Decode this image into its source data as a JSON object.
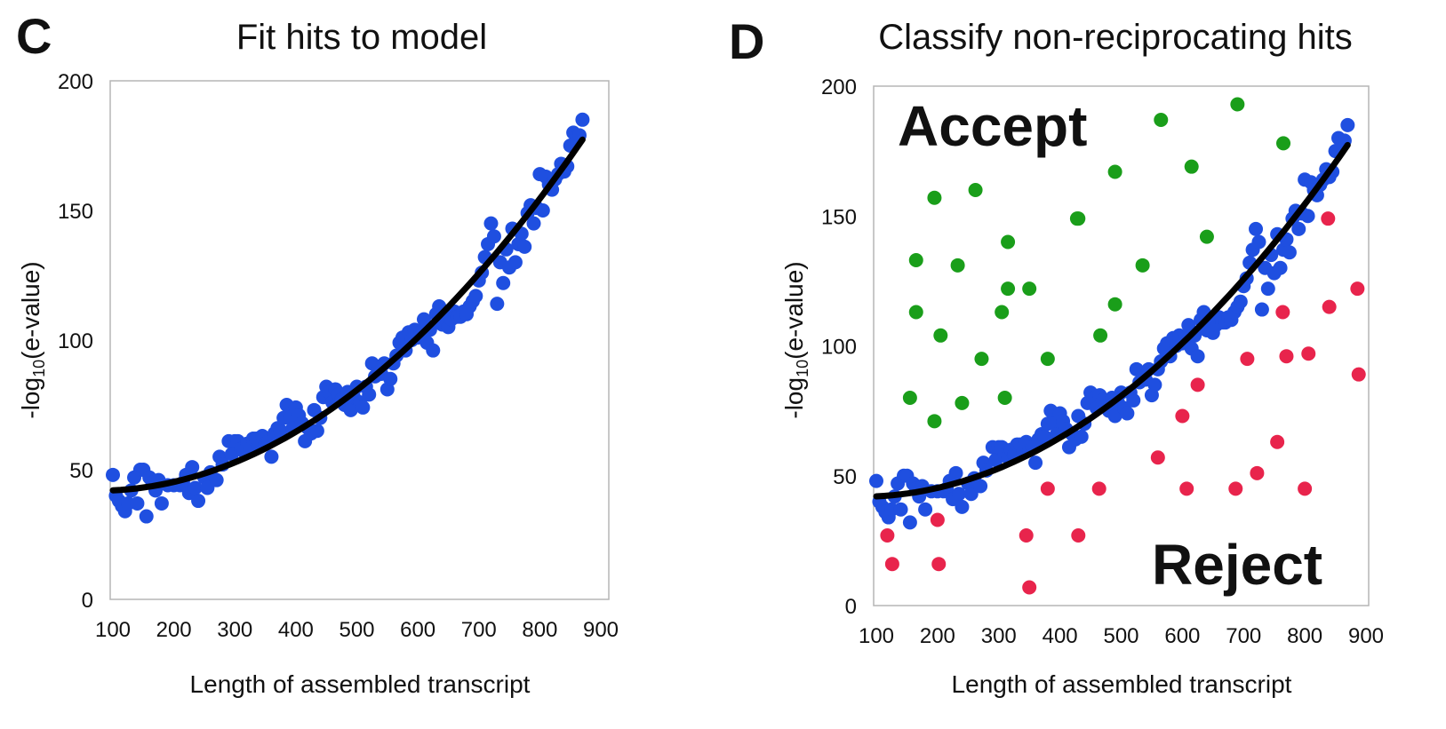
{
  "colors": {
    "blue": "#1f4fe0",
    "green": "#1a9e1a",
    "red": "#e8244c",
    "fit": "#000000",
    "frame": "#b5b5b5"
  },
  "chart_data": [
    {
      "type": "scatter",
      "panel_letter": "C",
      "title": "Fit hits to model",
      "xlabel": "Length of assembled transcript",
      "ylabel": "-log10(e-value)",
      "xlim": [
        100,
        900
      ],
      "ylim": [
        0,
        200
      ],
      "xticks": [
        "100",
        "200",
        "300",
        "400",
        "500",
        "600",
        "700",
        "800",
        "900"
      ],
      "yticks": [
        "0",
        "50",
        "100",
        "150",
        "200"
      ],
      "grid": false,
      "fit_curve": {
        "label": "",
        "color": "#000000",
        "x": [
          100,
          200,
          300,
          400,
          500,
          600,
          700,
          800,
          870
        ],
        "y": [
          42,
          45,
          53,
          65,
          81,
          101,
          125,
          154,
          178
        ]
      },
      "series": [
        {
          "color": "#1f4fe0",
          "x": [
            100,
            105,
            110,
            115,
            120,
            125,
            130,
            135,
            140,
            145,
            150,
            155,
            160,
            165,
            170,
            175,
            180,
            190,
            200,
            210,
            215,
            220,
            225,
            230,
            235,
            240,
            250,
            255,
            260,
            270,
            275,
            280,
            290,
            295,
            300,
            305,
            310,
            315,
            320,
            325,
            330,
            335,
            340,
            345,
            350,
            355,
            360,
            365,
            370,
            375,
            380,
            385,
            390,
            395,
            400,
            405,
            410,
            415,
            420,
            425,
            430,
            435,
            440,
            445,
            450,
            455,
            460,
            465,
            470,
            475,
            480,
            485,
            490,
            495,
            500,
            505,
            510,
            515,
            520,
            525,
            530,
            535,
            540,
            545,
            550,
            555,
            560,
            565,
            570,
            575,
            580,
            585,
            590,
            595,
            600,
            605,
            610,
            615,
            620,
            625,
            630,
            635,
            640,
            645,
            650,
            655,
            660,
            665,
            670,
            675,
            680,
            685,
            690,
            695,
            700,
            705,
            710,
            715,
            720,
            725,
            730,
            735,
            740,
            745,
            750,
            755,
            760,
            765,
            770,
            775,
            780,
            785,
            790,
            795,
            800,
            805,
            810,
            815,
            820,
            825,
            830,
            835,
            840,
            845,
            850,
            855,
            860,
            865,
            870
          ],
          "y": [
            48,
            40,
            38,
            36,
            34,
            37,
            42,
            47,
            37,
            50,
            50,
            32,
            47,
            45,
            42,
            46,
            37,
            44,
            44,
            44,
            45,
            48,
            41,
            51,
            43,
            38,
            47,
            43,
            49,
            46,
            55,
            52,
            61,
            56,
            61,
            61,
            58,
            57,
            60,
            58,
            62,
            62,
            59,
            63,
            60,
            61,
            55,
            64,
            66,
            65,
            70,
            75,
            70,
            66,
            74,
            71,
            68,
            61,
            66,
            64,
            73,
            65,
            70,
            78,
            82,
            80,
            76,
            81,
            79,
            77,
            75,
            80,
            73,
            78,
            82,
            76,
            74,
            82,
            79,
            91,
            86,
            89,
            87,
            91,
            81,
            85,
            91,
            94,
            99,
            101,
            96,
            103,
            100,
            104,
            101,
            103,
            108,
            99,
            104,
            96,
            110,
            113,
            106,
            111,
            105,
            108,
            111,
            109,
            109,
            111,
            110,
            113,
            115,
            117,
            123,
            126,
            132,
            137,
            145,
            140,
            114,
            130,
            122,
            135,
            128,
            143,
            130,
            137,
            141,
            136,
            149,
            152,
            145,
            151,
            164,
            150,
            163,
            160,
            158,
            162,
            164,
            168,
            165,
            167,
            175,
            180,
            178,
            179,
            185
          ]
        }
      ]
    },
    {
      "type": "scatter",
      "panel_letter": "D",
      "title": "Classify non-reciprocating hits",
      "xlabel": "Length of assembled transcript",
      "ylabel": "-log10(e-value)",
      "xlim": [
        100,
        900
      ],
      "ylim": [
        0,
        200
      ],
      "xticks": [
        "100",
        "200",
        "300",
        "400",
        "500",
        "600",
        "700",
        "800",
        "900"
      ],
      "yticks": [
        "0",
        "50",
        "100",
        "150",
        "200"
      ],
      "grid": false,
      "annotations": [
        "Accept",
        "Reject"
      ],
      "fit_curve": {
        "label": "",
        "color": "#000000",
        "x": [
          100,
          200,
          300,
          400,
          500,
          600,
          700,
          800,
          870
        ],
        "y": [
          42,
          45,
          53,
          65,
          81,
          101,
          125,
          154,
          178
        ]
      },
      "series": [
        {
          "color": "#1f4fe0",
          "x": [
            100,
            105,
            110,
            115,
            120,
            125,
            130,
            135,
            140,
            145,
            150,
            155,
            160,
            165,
            170,
            175,
            180,
            190,
            200,
            210,
            215,
            220,
            225,
            230,
            235,
            240,
            250,
            255,
            260,
            270,
            275,
            280,
            290,
            295,
            300,
            305,
            310,
            315,
            320,
            325,
            330,
            335,
            340,
            345,
            350,
            355,
            360,
            365,
            370,
            375,
            380,
            385,
            390,
            395,
            400,
            405,
            410,
            415,
            420,
            425,
            430,
            435,
            440,
            445,
            450,
            455,
            460,
            465,
            470,
            475,
            480,
            485,
            490,
            495,
            500,
            505,
            510,
            515,
            520,
            525,
            530,
            535,
            540,
            545,
            550,
            555,
            560,
            565,
            570,
            575,
            580,
            585,
            590,
            595,
            600,
            605,
            610,
            615,
            620,
            625,
            630,
            635,
            640,
            645,
            650,
            655,
            660,
            665,
            670,
            675,
            680,
            685,
            690,
            695,
            700,
            705,
            710,
            715,
            720,
            725,
            730,
            735,
            740,
            745,
            750,
            755,
            760,
            765,
            770,
            775,
            780,
            785,
            790,
            795,
            800,
            805,
            810,
            815,
            820,
            825,
            830,
            835,
            840,
            845,
            850,
            855,
            860,
            865,
            870
          ],
          "y": [
            48,
            40,
            38,
            36,
            34,
            37,
            42,
            47,
            37,
            50,
            50,
            32,
            47,
            45,
            42,
            46,
            37,
            44,
            44,
            44,
            45,
            48,
            41,
            51,
            43,
            38,
            47,
            43,
            49,
            46,
            55,
            52,
            61,
            56,
            61,
            61,
            58,
            57,
            60,
            58,
            62,
            62,
            59,
            63,
            60,
            61,
            55,
            64,
            66,
            65,
            70,
            75,
            70,
            66,
            74,
            71,
            68,
            61,
            66,
            64,
            73,
            65,
            70,
            78,
            82,
            80,
            76,
            81,
            79,
            77,
            75,
            80,
            73,
            78,
            82,
            76,
            74,
            82,
            79,
            91,
            86,
            89,
            87,
            91,
            81,
            85,
            91,
            94,
            99,
            101,
            96,
            103,
            100,
            104,
            101,
            103,
            108,
            99,
            104,
            96,
            110,
            113,
            106,
            111,
            105,
            108,
            111,
            109,
            109,
            111,
            110,
            113,
            115,
            117,
            123,
            126,
            132,
            137,
            145,
            140,
            114,
            130,
            122,
            135,
            128,
            143,
            130,
            137,
            141,
            136,
            149,
            152,
            145,
            151,
            164,
            150,
            163,
            160,
            158,
            162,
            164,
            168,
            165,
            167,
            175,
            180,
            178,
            179,
            185
          ]
        },
        {
          "color": "#1a9e1a",
          "x": [
            155,
            165,
            165,
            195,
            195,
            205,
            233,
            240,
            262,
            272,
            305,
            310,
            315,
            315,
            350,
            380,
            428,
            430,
            466,
            490,
            490,
            535,
            565,
            615,
            640,
            690,
            765
          ],
          "y": [
            80,
            133,
            113,
            71,
            157,
            104,
            131,
            78,
            160,
            95,
            113,
            80,
            140,
            122,
            122,
            95,
            149,
            149,
            104,
            116,
            167,
            131,
            187,
            169,
            142,
            193,
            178
          ]
        },
        {
          "color": "#e8244c",
          "x": [
            118,
            126,
            200,
            202,
            345,
            350,
            380,
            430,
            464,
            560,
            600,
            607,
            625,
            687,
            706,
            722,
            755,
            764,
            770,
            800,
            806,
            838,
            840,
            886,
            888
          ],
          "y": [
            27,
            16,
            33,
            16,
            27,
            7,
            45,
            27,
            45,
            57,
            73,
            45,
            85,
            45,
            95,
            51,
            63,
            113,
            96,
            45,
            97,
            149,
            115,
            122,
            89
          ]
        }
      ]
    }
  ]
}
